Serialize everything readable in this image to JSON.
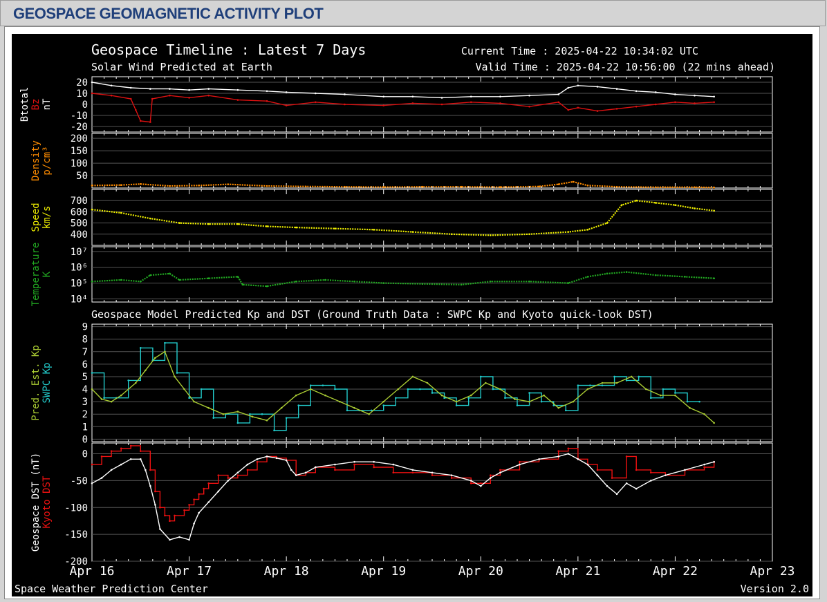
{
  "page_title": "GEOSPACE GEOMAGNETIC ACTIVITY PLOT",
  "header": {
    "title": "Geospace Timeline : Latest 7 Days",
    "subtitle": "Solar Wind Predicted at Earth",
    "current_time": "Current Time : 2025-04-22 10:34:02 UTC",
    "valid_time": "Valid Time : 2025-04-22 10:56:00 (22 mins ahead)",
    "model_title": "Geospace Model Predicted Kp and DST (Ground Truth Data : SWPC Kp and Kyoto quick-look DST)"
  },
  "footer": {
    "left": "Space Weather Prediction Center",
    "right": "Version 2.0"
  },
  "colors": {
    "btotal": "#ffffff",
    "bz": "#dd1111",
    "density": "#ff8c00",
    "speed": "#f0f000",
    "temperature": "#22aa22",
    "pred_kp": "#aacc33",
    "swpc_kp": "#22cccc",
    "geospace_dst": "#ffffff",
    "kyoto_dst": "#ee1111"
  },
  "chart_data": [
    {
      "type": "line",
      "panel": "mag",
      "ylabels": [
        {
          "text": "Btotal",
          "color": "#ffffff"
        },
        {
          "text": "Bz",
          "color": "#dd1111"
        },
        {
          "text": "nT",
          "color": "#ffffff"
        }
      ],
      "ylim": [
        -25,
        25
      ],
      "yticks": [
        20,
        10,
        0,
        -10,
        -20
      ],
      "yticklabels": [
        "20",
        "10",
        "0",
        "-10",
        "-20"
      ],
      "series": [
        {
          "name": "Btotal",
          "color": "#ffffff",
          "x": [
            0,
            0.2,
            0.4,
            0.6,
            0.8,
            1.0,
            1.2,
            1.5,
            1.8,
            2.0,
            2.3,
            2.6,
            3.0,
            3.3,
            3.6,
            3.9,
            4.2,
            4.5,
            4.8,
            4.9,
            5.0,
            5.2,
            5.4,
            5.6,
            5.8,
            6.0,
            6.2,
            6.4
          ],
          "y": [
            20,
            17,
            15,
            14,
            14,
            13,
            14,
            13,
            12,
            11,
            10,
            9,
            7,
            7,
            6,
            7,
            7,
            8,
            9,
            15,
            17,
            16,
            14,
            12,
            11,
            9,
            8,
            7
          ]
        },
        {
          "name": "Bz",
          "color": "#dd1111",
          "x": [
            0,
            0.2,
            0.4,
            0.45,
            0.5,
            0.6,
            0.62,
            0.8,
            1.0,
            1.2,
            1.5,
            1.8,
            2.0,
            2.3,
            2.6,
            3.0,
            3.3,
            3.6,
            3.9,
            4.2,
            4.5,
            4.8,
            4.9,
            5.0,
            5.2,
            5.4,
            5.6,
            5.8,
            6.0,
            6.2,
            6.4
          ],
          "y": [
            10,
            8,
            5,
            -5,
            -15,
            -16,
            5,
            8,
            6,
            8,
            4,
            3,
            -1,
            2,
            0,
            -1,
            1,
            0,
            2,
            1,
            -2,
            2,
            -5,
            -3,
            -6,
            -4,
            -2,
            0,
            2,
            1,
            2
          ]
        }
      ]
    },
    {
      "type": "scatter",
      "panel": "density",
      "ylabels": [
        {
          "text": "Density",
          "color": "#ff8c00"
        },
        {
          "text": "p/cm³",
          "color": "#ff8c00"
        }
      ],
      "ylim": [
        0,
        220
      ],
      "yticks": [
        200,
        150,
        100,
        50
      ],
      "yticklabels": [
        "200",
        "150",
        "100",
        "50"
      ],
      "series": [
        {
          "name": "Density",
          "color": "#ff8c00",
          "x": [
            0,
            0.3,
            0.5,
            0.8,
            1.1,
            1.4,
            1.8,
            2.2,
            2.6,
            3.0,
            3.4,
            3.8,
            4.2,
            4.6,
            4.8,
            4.95,
            5.1,
            5.4,
            5.8,
            6.2,
            6.4
          ],
          "y": [
            10,
            12,
            16,
            8,
            10,
            15,
            8,
            6,
            5,
            4,
            5,
            5,
            4,
            6,
            15,
            25,
            10,
            5,
            3,
            3,
            2
          ]
        }
      ]
    },
    {
      "type": "scatter",
      "panel": "speed",
      "ylabels": [
        {
          "text": "Speed",
          "color": "#f0f000"
        },
        {
          "text": "km/s",
          "color": "#f0f000"
        }
      ],
      "ylim": [
        300,
        800
      ],
      "yticks": [
        700,
        600,
        500,
        400
      ],
      "yticklabels": [
        "700",
        "600",
        "500",
        "400"
      ],
      "series": [
        {
          "name": "Speed",
          "color": "#f0f000",
          "x": [
            0,
            0.3,
            0.6,
            0.9,
            1.2,
            1.5,
            1.8,
            2.1,
            2.5,
            2.9,
            3.3,
            3.7,
            4.1,
            4.5,
            4.9,
            5.1,
            5.3,
            5.45,
            5.6,
            5.8,
            6.0,
            6.2,
            6.4
          ],
          "y": [
            620,
            590,
            540,
            500,
            490,
            490,
            470,
            460,
            450,
            440,
            420,
            400,
            390,
            400,
            420,
            440,
            500,
            660,
            700,
            680,
            660,
            630,
            610
          ]
        }
      ]
    },
    {
      "type": "scatter",
      "panel": "temperature",
      "ylabels": [
        {
          "text": "Temperature",
          "color": "#22aa22"
        },
        {
          "text": "K",
          "color": "#22aa22"
        }
      ],
      "ylim": [
        3.8,
        7.3
      ],
      "yscale": "log",
      "yticks": [
        7,
        6,
        5,
        4
      ],
      "yticklabels": [
        "10⁷",
        "10⁶",
        "10⁵",
        "10⁴"
      ],
      "series": [
        {
          "name": "Temperature",
          "color": "#22aa22",
          "x": [
            0,
            0.3,
            0.5,
            0.6,
            0.8,
            0.9,
            1.2,
            1.5,
            1.55,
            1.8,
            2.1,
            2.4,
            2.7,
            3.0,
            3.4,
            3.8,
            4.1,
            4.5,
            4.9,
            5.1,
            5.3,
            5.5,
            5.8,
            6.1,
            6.4
          ],
          "y": [
            5.1,
            5.2,
            5.1,
            5.5,
            5.6,
            5.2,
            5.3,
            5.4,
            4.9,
            4.8,
            5.1,
            5.2,
            5.1,
            5.0,
            4.95,
            4.9,
            5.1,
            5.1,
            5.0,
            5.4,
            5.6,
            5.7,
            5.5,
            5.4,
            5.3
          ]
        }
      ]
    },
    {
      "type": "line",
      "panel": "kp",
      "ylabels": [
        {
          "text": "Pred. Est. Kp",
          "color": "#aacc33"
        },
        {
          "text": "SWPC Kp",
          "color": "#22cccc"
        }
      ],
      "ylim": [
        -0.2,
        9.2
      ],
      "yticks": [
        9,
        8,
        7,
        6,
        5,
        4,
        3,
        2,
        1,
        0
      ],
      "yticklabels": [
        "9",
        "8",
        "7",
        "6",
        "5",
        "4",
        "3",
        "2",
        "1",
        "0"
      ],
      "series": [
        {
          "name": "SWPC Kp",
          "color": "#22cccc",
          "step": true,
          "x": [
            0,
            0.125,
            0.25,
            0.375,
            0.5,
            0.625,
            0.75,
            0.875,
            1.0,
            1.125,
            1.25,
            1.375,
            1.5,
            1.625,
            1.75,
            1.875,
            2.0,
            2.125,
            2.25,
            2.375,
            2.5,
            2.625,
            2.75,
            2.875,
            3.0,
            3.125,
            3.25,
            3.375,
            3.5,
            3.625,
            3.75,
            3.875,
            4.0,
            4.125,
            4.25,
            4.375,
            4.5,
            4.625,
            4.75,
            4.875,
            5.0,
            5.125,
            5.25,
            5.375,
            5.5,
            5.625,
            5.75,
            5.875,
            6.0,
            6.125,
            6.25
          ],
          "y": [
            5.3,
            3.3,
            3.3,
            4.7,
            7.3,
            6.3,
            7.7,
            5.3,
            3.3,
            4.0,
            1.7,
            2.0,
            1.3,
            2.0,
            2.0,
            0.7,
            1.7,
            2.7,
            4.3,
            4.3,
            4.0,
            2.3,
            2.3,
            2.3,
            2.7,
            3.3,
            4.0,
            4.0,
            3.7,
            3.3,
            2.7,
            3.3,
            5.0,
            4.0,
            3.3,
            2.7,
            3.7,
            3.0,
            2.7,
            2.3,
            4.3,
            4.3,
            4.3,
            5.0,
            4.7,
            5.0,
            3.3,
            4.0,
            3.7,
            3.0,
            3.0
          ]
        },
        {
          "name": "Pred. Est. Kp",
          "color": "#aacc33",
          "step": false,
          "x": [
            0,
            0.1,
            0.2,
            0.3,
            0.45,
            0.55,
            0.65,
            0.75,
            0.85,
            0.95,
            1.05,
            1.2,
            1.35,
            1.5,
            1.65,
            1.8,
            1.95,
            2.1,
            2.25,
            2.4,
            2.55,
            2.7,
            2.85,
            3.0,
            3.15,
            3.3,
            3.45,
            3.6,
            3.75,
            3.9,
            4.05,
            4.2,
            4.35,
            4.5,
            4.65,
            4.8,
            4.95,
            5.1,
            5.25,
            5.4,
            5.55,
            5.7,
            5.85,
            6.0,
            6.15,
            6.3,
            6.4
          ],
          "y": [
            4.0,
            3.2,
            3.0,
            3.5,
            4.5,
            5.5,
            6.5,
            7.0,
            5.0,
            4.0,
            3.0,
            2.5,
            2.0,
            2.2,
            1.8,
            1.5,
            2.5,
            3.5,
            4.0,
            3.5,
            3.0,
            2.5,
            2.0,
            3.0,
            4.0,
            5.0,
            4.5,
            3.5,
            3.0,
            3.5,
            4.5,
            4.0,
            3.2,
            3.0,
            3.5,
            2.5,
            3.0,
            4.0,
            4.5,
            4.5,
            5.0,
            4.0,
            3.5,
            3.5,
            2.5,
            2.0,
            1.3
          ]
        }
      ]
    },
    {
      "type": "line",
      "panel": "dst",
      "ylabels": [
        {
          "text": "Geospace DST (nT)",
          "color": "#ffffff"
        },
        {
          "text": "Kyoto DST",
          "color": "#ee1111"
        }
      ],
      "ylim": [
        -200,
        20
      ],
      "yticks": [
        0,
        -50,
        -100,
        -150,
        -200
      ],
      "yticklabels": [
        "0",
        "-50",
        "-100",
        "-150",
        "-200"
      ],
      "xticklabels": [
        "Apr 16",
        "Apr 17",
        "Apr 18",
        "Apr 19",
        "Apr 20",
        "Apr 21",
        "Apr 22",
        "Apr 23"
      ],
      "xlim": [
        0,
        7
      ],
      "series": [
        {
          "name": "Kyoto DST",
          "color": "#ee1111",
          "step": true,
          "x": [
            0,
            0.1,
            0.2,
            0.3,
            0.4,
            0.5,
            0.6,
            0.65,
            0.7,
            0.75,
            0.8,
            0.85,
            0.95,
            1.0,
            1.05,
            1.1,
            1.15,
            1.2,
            1.3,
            1.4,
            1.5,
            1.6,
            1.7,
            1.8,
            1.9,
            2.0,
            2.1,
            2.2,
            2.3,
            2.5,
            2.7,
            2.9,
            3.1,
            3.3,
            3.5,
            3.7,
            3.9,
            4.0,
            4.1,
            4.2,
            4.4,
            4.6,
            4.8,
            4.9,
            5.0,
            5.1,
            5.2,
            5.35,
            5.5,
            5.6,
            5.75,
            5.9,
            6.1,
            6.3,
            6.4
          ],
          "y": [
            -20,
            -5,
            5,
            10,
            15,
            5,
            -30,
            -70,
            -100,
            -115,
            -125,
            -115,
            -105,
            -95,
            -85,
            -75,
            -65,
            -55,
            -40,
            -45,
            -40,
            -30,
            -15,
            -5,
            -8,
            -12,
            -40,
            -35,
            -25,
            -30,
            -20,
            -25,
            -35,
            -35,
            -40,
            -45,
            -55,
            -55,
            -40,
            -30,
            -15,
            -10,
            5,
            10,
            -10,
            -20,
            -30,
            -45,
            -5,
            -30,
            -35,
            -40,
            -30,
            -25,
            -15
          ]
        },
        {
          "name": "Geospace DST",
          "color": "#ffffff",
          "step": false,
          "x": [
            0,
            0.1,
            0.2,
            0.3,
            0.4,
            0.5,
            0.55,
            0.6,
            0.65,
            0.7,
            0.8,
            0.9,
            1.0,
            1.05,
            1.1,
            1.2,
            1.3,
            1.4,
            1.5,
            1.6,
            1.7,
            1.8,
            1.9,
            2.0,
            2.05,
            2.1,
            2.2,
            2.3,
            2.5,
            2.7,
            2.9,
            3.1,
            3.3,
            3.5,
            3.7,
            3.9,
            4.0,
            4.1,
            4.2,
            4.4,
            4.6,
            4.8,
            4.9,
            5.0,
            5.1,
            5.2,
            5.3,
            5.4,
            5.5,
            5.6,
            5.75,
            5.9,
            6.1,
            6.3,
            6.4
          ],
          "y": [
            -55,
            -45,
            -30,
            -20,
            -10,
            -10,
            -30,
            -60,
            -95,
            -140,
            -160,
            -155,
            -160,
            -130,
            -110,
            -90,
            -70,
            -50,
            -35,
            -20,
            -10,
            -5,
            -8,
            -12,
            -30,
            -40,
            -35,
            -25,
            -20,
            -15,
            -15,
            -20,
            -30,
            -35,
            -40,
            -50,
            -60,
            -45,
            -35,
            -20,
            -10,
            -5,
            0,
            -10,
            -20,
            -40,
            -60,
            -75,
            -55,
            -65,
            -50,
            -40,
            -30,
            -20,
            -15
          ]
        }
      ]
    }
  ]
}
